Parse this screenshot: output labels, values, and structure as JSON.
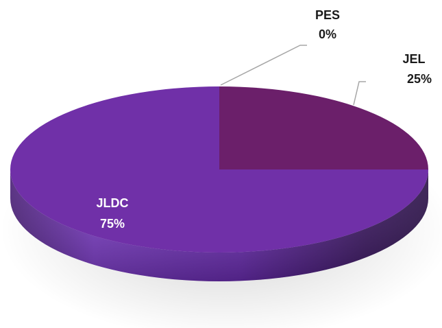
{
  "chart_data": {
    "type": "pie",
    "style": "3d",
    "categories": [
      "JEL",
      "PES",
      "JLDC"
    ],
    "values": [
      25,
      0,
      75
    ],
    "labels": [
      {
        "name": "JEL",
        "percent": "25%"
      },
      {
        "name": "PES",
        "percent": "0%"
      },
      {
        "name": "JLDC",
        "percent": "75%"
      }
    ],
    "colors": {
      "JEL": "#6b1f6a",
      "PES": "#8a8a8a",
      "JLDC": "#7030a8"
    },
    "legend": "none",
    "title": ""
  }
}
